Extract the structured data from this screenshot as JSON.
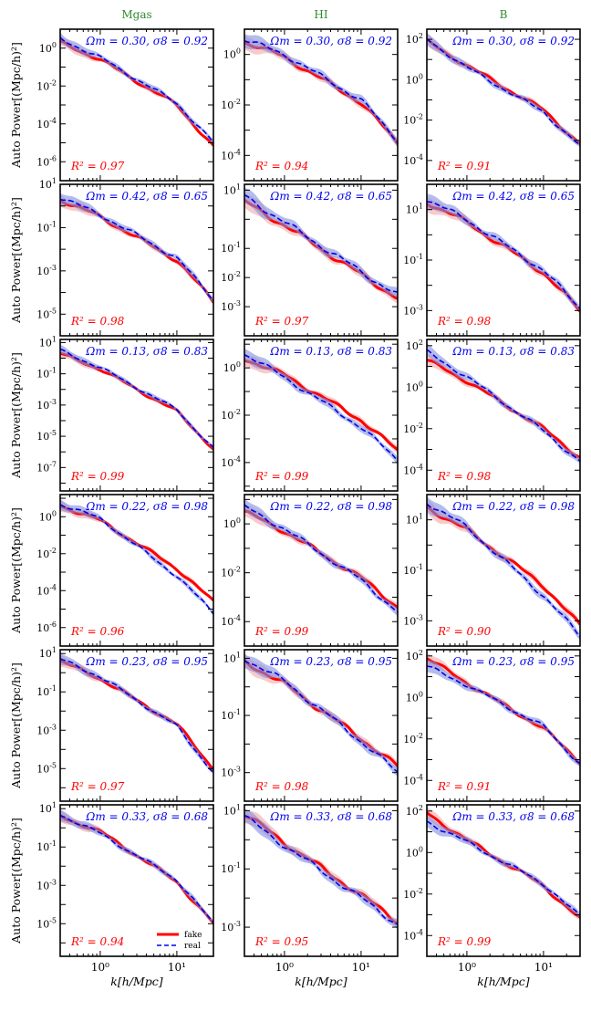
{
  "figure": {
    "column_titles": [
      "Mgas",
      "HI",
      "B"
    ],
    "ylabel": "Auto Power[(Mpc/h)²]",
    "xlabel": "k[h/Mpc]",
    "x_ticks": [
      "10⁰",
      "10¹"
    ],
    "legend": {
      "fake": "fake",
      "real": "real"
    },
    "colors": {
      "title": "#2e8b2e",
      "fake": "#ff0000",
      "real": "#0000ee",
      "fake_band": "#f2a0a0",
      "real_band": "#8090e0"
    }
  },
  "chart_data": [
    {
      "type": "line",
      "panel": "r1c1",
      "annotation": "Ωm = 0.30, σ8 = 0.92",
      "r2_label": "R² = 0.97",
      "x_range": [
        0.3,
        30
      ],
      "y_range_log10": [
        -7,
        1
      ],
      "y_tick_exps": [
        0,
        -2,
        -4,
        -6
      ],
      "x": [
        0.3,
        1,
        10,
        30
      ],
      "series": [
        {
          "name": "fake",
          "values_log10": [
            0.3,
            -0.6,
            -3.0,
            -5.2
          ]
        },
        {
          "name": "real",
          "values_log10": [
            0.5,
            -0.5,
            -2.9,
            -5.0
          ]
        }
      ]
    },
    {
      "type": "line",
      "panel": "r1c2",
      "annotation": "Ωm = 0.30, σ8 = 0.92",
      "r2_label": "R² = 0.94",
      "x_range": [
        0.3,
        30
      ],
      "y_range_log10": [
        -5,
        1
      ],
      "y_tick_exps": [
        0,
        -2,
        -4
      ],
      "x": [
        0.3,
        1,
        10,
        30
      ],
      "series": [
        {
          "name": "fake",
          "values_log10": [
            0.5,
            -0.1,
            -1.9,
            -3.5
          ]
        },
        {
          "name": "real",
          "values_log10": [
            0.6,
            0.0,
            -1.8,
            -3.4
          ]
        }
      ]
    },
    {
      "type": "line",
      "panel": "r1c3",
      "annotation": "Ωm = 0.30, σ8 = 0.92",
      "r2_label": "R² = 0.91",
      "x_range": [
        0.3,
        30
      ],
      "y_range_log10": [
        -5,
        2.5
      ],
      "y_tick_exps": [
        2,
        0,
        -2,
        -4
      ],
      "x": [
        0.3,
        1,
        10,
        30
      ],
      "series": [
        {
          "name": "fake",
          "values_log10": [
            1.9,
            0.7,
            -1.5,
            -3.2
          ]
        },
        {
          "name": "real",
          "values_log10": [
            2.0,
            0.6,
            -1.6,
            -3.3
          ]
        }
      ]
    },
    {
      "type": "line",
      "panel": "r2c1",
      "annotation": "Ωm = 0.42, σ8 = 0.65",
      "r2_label": "R² = 0.98",
      "x_range": [
        0.3,
        30
      ],
      "y_range_log10": [
        -6,
        1
      ],
      "y_tick_exps": [
        1,
        -1,
        -3,
        -5
      ],
      "x": [
        0.3,
        1,
        10,
        30
      ],
      "series": [
        {
          "name": "fake",
          "values_log10": [
            0.3,
            -0.5,
            -2.5,
            -4.4
          ]
        },
        {
          "name": "real",
          "values_log10": [
            0.4,
            -0.4,
            -2.4,
            -4.3
          ]
        }
      ]
    },
    {
      "type": "line",
      "panel": "r2c2",
      "annotation": "Ωm = 0.42, σ8 = 0.65",
      "r2_label": "R² = 0.97",
      "x_range": [
        0.3,
        30
      ],
      "y_range_log10": [
        -4,
        1.2
      ],
      "y_tick_exps": [
        1,
        -1,
        -2,
        -3
      ],
      "x": [
        0.3,
        1,
        10,
        30
      ],
      "series": [
        {
          "name": "fake",
          "values_log10": [
            0.6,
            -0.2,
            -1.9,
            -2.7
          ]
        },
        {
          "name": "real",
          "values_log10": [
            0.8,
            -0.1,
            -1.8,
            -2.6
          ]
        }
      ]
    },
    {
      "type": "line",
      "panel": "r2c3",
      "annotation": "Ωm = 0.42, σ8 = 0.65",
      "r2_label": "R² = 0.98",
      "x_range": [
        0.3,
        30
      ],
      "y_range_log10": [
        -4,
        2
      ],
      "y_tick_exps": [
        1,
        -1,
        -3
      ],
      "x": [
        0.3,
        1,
        10,
        30
      ],
      "series": [
        {
          "name": "fake",
          "values_log10": [
            1.3,
            0.5,
            -1.5,
            -3.0
          ]
        },
        {
          "name": "real",
          "values_log10": [
            1.4,
            0.6,
            -1.4,
            -2.9
          ]
        }
      ]
    },
    {
      "type": "line",
      "panel": "r3c1",
      "annotation": "Ωm = 0.13, σ8 = 0.83",
      "r2_label": "R² = 0.99",
      "x_range": [
        0.3,
        30
      ],
      "y_range_log10": [
        -8.5,
        1.2
      ],
      "y_tick_exps": [
        1,
        -1,
        -3,
        -5,
        -7
      ],
      "x": [
        0.3,
        1,
        10,
        30
      ],
      "series": [
        {
          "name": "fake",
          "values_log10": [
            0.3,
            -0.7,
            -3.4,
            -5.8
          ]
        },
        {
          "name": "real",
          "values_log10": [
            0.5,
            -0.6,
            -3.3,
            -5.8
          ]
        }
      ]
    },
    {
      "type": "line",
      "panel": "r3c2",
      "annotation": "Ωm = 0.13, σ8 = 0.83",
      "r2_label": "R² = 0.99",
      "x_range": [
        0.3,
        30
      ],
      "y_range_log10": [
        -5.2,
        1.2
      ],
      "y_tick_exps": [
        0,
        -2,
        -4
      ],
      "x": [
        0.3,
        1,
        10,
        30
      ],
      "series": [
        {
          "name": "fake",
          "values_log10": [
            0.4,
            -0.3,
            -2.2,
            -3.5
          ]
        },
        {
          "name": "real",
          "values_log10": [
            0.6,
            -0.4,
            -2.5,
            -3.9
          ]
        }
      ]
    },
    {
      "type": "line",
      "panel": "r3c3",
      "annotation": "Ωm = 0.13, σ8 = 0.83",
      "r2_label": "R² = 0.98",
      "x_range": [
        0.3,
        30
      ],
      "y_range_log10": [
        -5,
        2.3
      ],
      "y_tick_exps": [
        2,
        0,
        -2,
        -4
      ],
      "x": [
        0.3,
        1,
        10,
        30
      ],
      "series": [
        {
          "name": "fake",
          "values_log10": [
            1.3,
            0.3,
            -2.0,
            -3.4
          ]
        },
        {
          "name": "real",
          "values_log10": [
            1.7,
            0.5,
            -2.1,
            -3.6
          ]
        }
      ]
    },
    {
      "type": "line",
      "panel": "r4c1",
      "annotation": "Ωm = 0.22, σ8 = 0.98",
      "r2_label": "R² = 0.96",
      "x_range": [
        0.3,
        30
      ],
      "y_range_log10": [
        -7,
        1.2
      ],
      "y_tick_exps": [
        0,
        -2,
        -4,
        -6
      ],
      "x": [
        0.3,
        1,
        10,
        30
      ],
      "series": [
        {
          "name": "fake",
          "values_log10": [
            0.6,
            -0.2,
            -2.8,
            -4.6
          ]
        },
        {
          "name": "real",
          "values_log10": [
            0.7,
            -0.1,
            -3.2,
            -5.2
          ]
        }
      ]
    },
    {
      "type": "line",
      "panel": "r4c2",
      "annotation": "Ωm = 0.22, σ8 = 0.98",
      "r2_label": "R² = 0.99",
      "x_range": [
        0.3,
        30
      ],
      "y_range_log10": [
        -5,
        1.2
      ],
      "y_tick_exps": [
        0,
        -2,
        -4
      ],
      "x": [
        0.3,
        1,
        10,
        30
      ],
      "series": [
        {
          "name": "fake",
          "values_log10": [
            0.5,
            -0.3,
            -2.2,
            -3.4
          ]
        },
        {
          "name": "real",
          "values_log10": [
            0.7,
            -0.2,
            -2.3,
            -3.6
          ]
        }
      ]
    },
    {
      "type": "line",
      "panel": "r4c3",
      "annotation": "Ωm = 0.22, σ8 = 0.98",
      "r2_label": "R² = 0.90",
      "x_range": [
        0.3,
        30
      ],
      "y_range_log10": [
        -4,
        2
      ],
      "y_tick_exps": [
        1,
        -1,
        -3
      ],
      "x": [
        0.3,
        1,
        10,
        30
      ],
      "series": [
        {
          "name": "fake",
          "values_log10": [
            1.5,
            0.6,
            -1.6,
            -3.2
          ]
        },
        {
          "name": "real",
          "values_log10": [
            1.7,
            0.7,
            -2.0,
            -3.6
          ]
        }
      ]
    },
    {
      "type": "line",
      "panel": "r5c1",
      "annotation": "Ωm = 0.23, σ8 = 0.95",
      "r2_label": "R² = 0.97",
      "x_range": [
        0.3,
        30
      ],
      "y_range_log10": [
        -6.7,
        1.2
      ],
      "y_tick_exps": [
        1,
        -1,
        -3,
        -5
      ],
      "x": [
        0.3,
        1,
        10,
        30
      ],
      "series": [
        {
          "name": "fake",
          "values_log10": [
            0.6,
            -0.3,
            -2.7,
            -5.0
          ]
        },
        {
          "name": "real",
          "values_log10": [
            0.7,
            -0.2,
            -2.8,
            -5.2
          ]
        }
      ]
    },
    {
      "type": "line",
      "panel": "r5c2",
      "annotation": "Ωm = 0.23, σ8 = 0.95",
      "r2_label": "R² = 0.98",
      "x_range": [
        0.3,
        30
      ],
      "y_range_log10": [
        -4,
        1.3
      ],
      "y_tick_exps": [
        1,
        -1,
        -3
      ],
      "x": [
        0.3,
        1,
        10,
        30
      ],
      "series": [
        {
          "name": "fake",
          "values_log10": [
            0.9,
            0.1,
            -1.8,
            -2.8
          ]
        },
        {
          "name": "real",
          "values_log10": [
            1.0,
            0.2,
            -1.9,
            -3.0
          ]
        }
      ]
    },
    {
      "type": "line",
      "panel": "r5c3",
      "annotation": "Ωm = 0.23, σ8 = 0.95",
      "r2_label": "R² = 0.91",
      "x_range": [
        0.3,
        30
      ],
      "y_range_log10": [
        -5,
        2.3
      ],
      "y_tick_exps": [
        2,
        0,
        -2,
        -4
      ],
      "x": [
        0.3,
        1,
        10,
        30
      ],
      "series": [
        {
          "name": "fake",
          "values_log10": [
            1.9,
            0.7,
            -1.5,
            -3.1
          ]
        },
        {
          "name": "real",
          "values_log10": [
            1.5,
            0.6,
            -1.4,
            -3.2
          ]
        }
      ]
    },
    {
      "type": "line",
      "panel": "r6c1",
      "annotation": "Ωm = 0.33, σ8 = 0.68",
      "r2_label": "R² = 0.94",
      "x_range": [
        0.3,
        30
      ],
      "y_range_log10": [
        -6.7,
        1.2
      ],
      "y_tick_exps": [
        1,
        -1,
        -3,
        -5
      ],
      "x": [
        0.3,
        1,
        10,
        30
      ],
      "series": [
        {
          "name": "fake",
          "values_log10": [
            0.6,
            -0.2,
            -2.8,
            -5.0
          ]
        },
        {
          "name": "real",
          "values_log10": [
            0.7,
            -0.3,
            -2.7,
            -5.0
          ]
        }
      ]
    },
    {
      "type": "line",
      "panel": "r6c2",
      "annotation": "Ωm = 0.33, σ8 = 0.68",
      "r2_label": "R² = 0.95",
      "x_range": [
        0.3,
        30
      ],
      "y_range_log10": [
        -4,
        1.2
      ],
      "y_tick_exps": [
        1,
        -1,
        -3
      ],
      "x": [
        0.3,
        1,
        10,
        30
      ],
      "series": [
        {
          "name": "fake",
          "values_log10": [
            0.9,
            -0.1,
            -1.9,
            -2.8
          ]
        },
        {
          "name": "real",
          "values_log10": [
            0.8,
            -0.2,
            -2.0,
            -2.9
          ]
        }
      ]
    },
    {
      "type": "line",
      "panel": "r6c3",
      "annotation": "Ωm = 0.33, σ8 = 0.68",
      "r2_label": "R² = 0.99",
      "x_range": [
        0.3,
        30
      ],
      "y_range_log10": [
        -5,
        2.3
      ],
      "y_tick_exps": [
        2,
        0,
        -2,
        -4
      ],
      "x": [
        0.3,
        1,
        10,
        30
      ],
      "series": [
        {
          "name": "fake",
          "values_log10": [
            1.9,
            0.6,
            -1.6,
            -3.2
          ]
        },
        {
          "name": "real",
          "values_log10": [
            1.5,
            0.5,
            -1.5,
            -3.1
          ]
        }
      ]
    }
  ]
}
